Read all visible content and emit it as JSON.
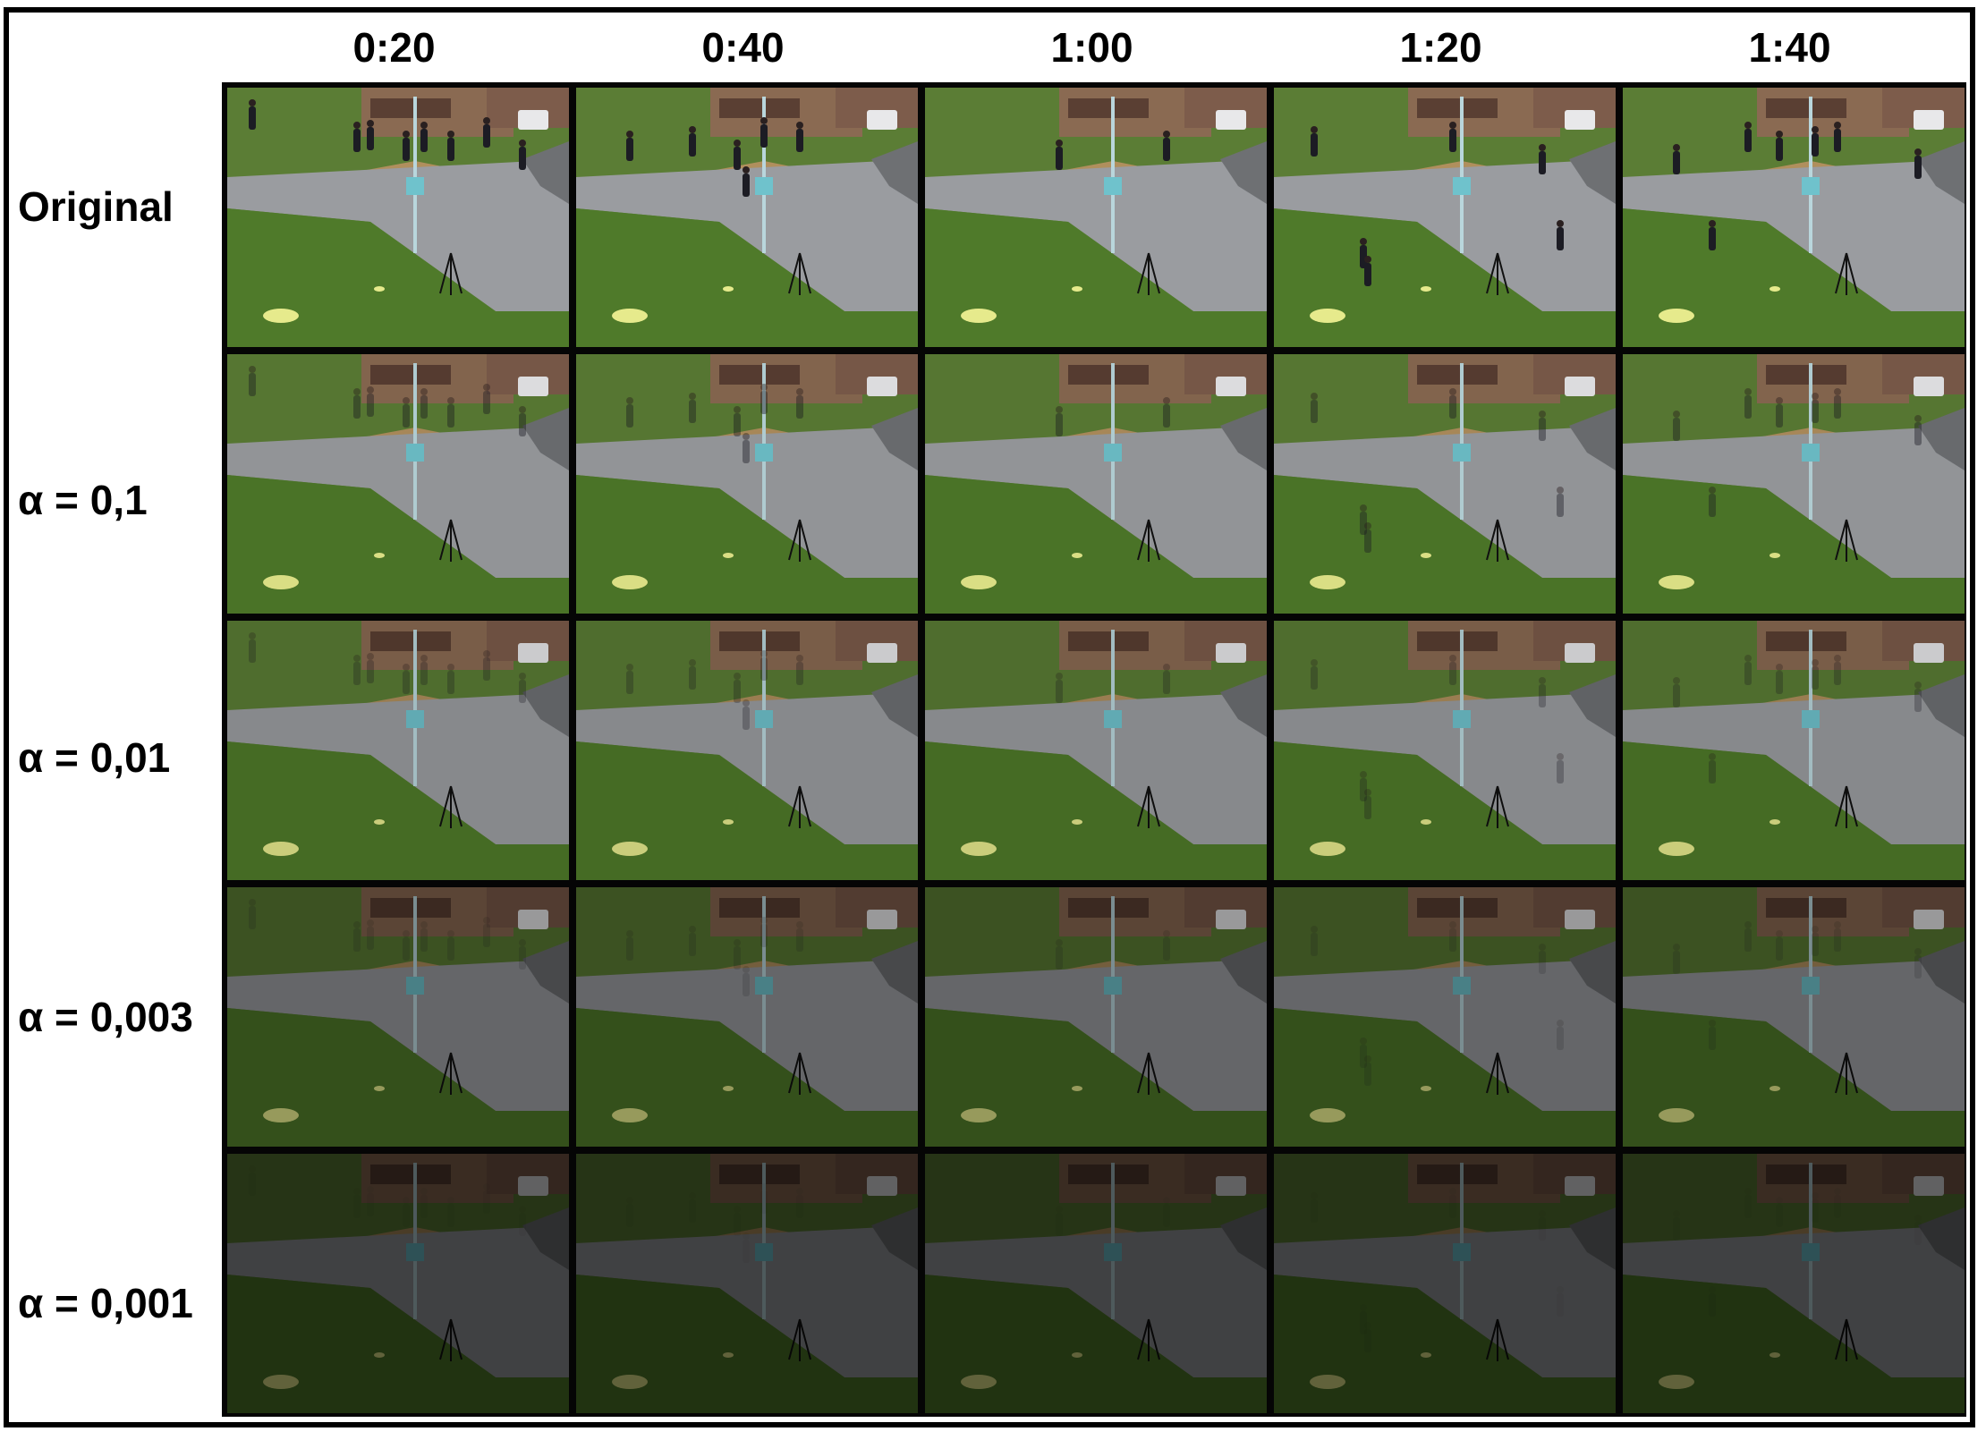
{
  "figure": {
    "columns": [
      "0:20",
      "0:40",
      "1:00",
      "1:20",
      "1:40"
    ],
    "rows": [
      "Original",
      "α = 0,1",
      "α = 0,01",
      "α = 0,003",
      "α = 0,001"
    ],
    "row_brightness": [
      1.0,
      0.95,
      0.88,
      0.66,
      0.42
    ],
    "colors": {
      "grass": "#4f7a2a",
      "road": "#9a9ca0",
      "building": "#8a6a52",
      "frame": "#000000"
    }
  }
}
